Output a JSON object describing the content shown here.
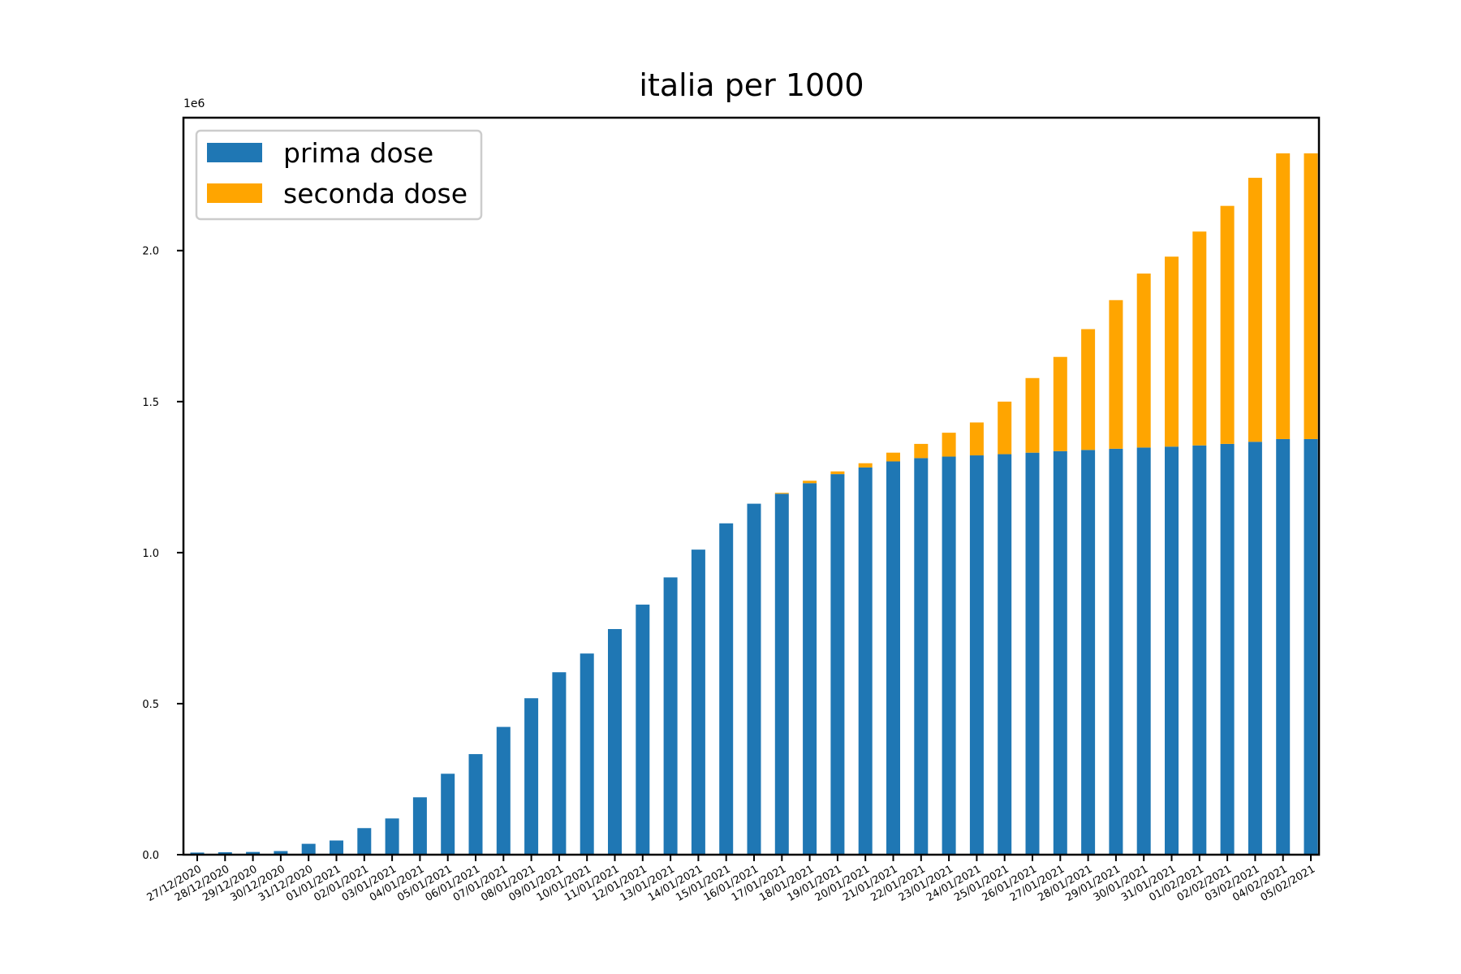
{
  "chart_data": {
    "type": "bar",
    "stacked": true,
    "title": "italia per 1000",
    "xlabel": "",
    "ylabel": "",
    "y_offset_label": "1e6",
    "ylim": [
      0,
      2.44
    ],
    "y_ticks": [
      "0.0",
      "0.5",
      "1.0",
      "1.5",
      "2.0"
    ],
    "legend_position": "top-left",
    "grid": false,
    "categories": [
      "27/12/2020",
      "28/12/2020",
      "29/12/2020",
      "30/12/2020",
      "31/12/2020",
      "01/01/2021",
      "02/01/2021",
      "03/01/2021",
      "04/01/2021",
      "05/01/2021",
      "06/01/2021",
      "07/01/2021",
      "08/01/2021",
      "09/01/2021",
      "10/01/2021",
      "11/01/2021",
      "12/01/2021",
      "13/01/2021",
      "14/01/2021",
      "15/01/2021",
      "16/01/2021",
      "17/01/2021",
      "18/01/2021",
      "19/01/2021",
      "20/01/2021",
      "21/01/2021",
      "22/01/2021",
      "23/01/2021",
      "24/01/2021",
      "25/01/2021",
      "26/01/2021",
      "27/01/2021",
      "28/01/2021",
      "29/01/2021",
      "30/01/2021",
      "31/01/2021",
      "01/02/2021",
      "02/02/2021",
      "03/02/2021",
      "04/02/2021",
      "05/02/2021"
    ],
    "series": [
      {
        "name": "prima dose",
        "color": "#1f77b4",
        "values": [
          0.007,
          0.008,
          0.009,
          0.012,
          0.036,
          0.047,
          0.088,
          0.12,
          0.19,
          0.268,
          0.333,
          0.423,
          0.518,
          0.604,
          0.666,
          0.747,
          0.828,
          0.918,
          1.01,
          1.097,
          1.162,
          1.195,
          1.23,
          1.26,
          1.282,
          1.302,
          1.313,
          1.318,
          1.322,
          1.326,
          1.331,
          1.336,
          1.34,
          1.344,
          1.348,
          1.351,
          1.355,
          1.36,
          1.367,
          1.376,
          1.376
        ]
      },
      {
        "name": "seconda dose",
        "color": "#ffa500",
        "values": [
          0,
          0,
          0,
          0,
          0,
          0,
          0,
          0,
          0,
          0,
          0,
          0,
          0,
          0,
          0,
          0,
          0,
          0,
          0,
          0,
          0,
          0.003,
          0.008,
          0.009,
          0.014,
          0.029,
          0.047,
          0.079,
          0.109,
          0.174,
          0.247,
          0.312,
          0.4,
          0.492,
          0.576,
          0.629,
          0.708,
          0.788,
          0.874,
          0.946,
          0.946
        ]
      }
    ]
  }
}
